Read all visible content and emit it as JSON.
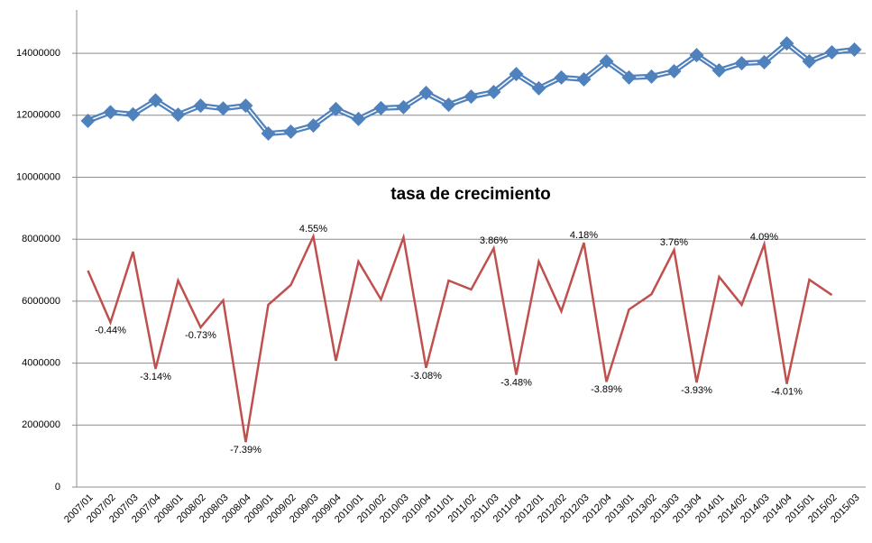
{
  "chart_data": {
    "type": "line",
    "title": "tasa de crecimiento",
    "categories": [
      "2007/01",
      "2007/02",
      "2007/03",
      "2007/04",
      "2008/01",
      "2008/02",
      "2008/03",
      "2008/04",
      "2009/01",
      "2009/02",
      "2009/03",
      "2009/04",
      "2010/01",
      "2010/02",
      "2010/03",
      "2010/04",
      "2011/01",
      "2011/02",
      "2011/03",
      "2011/04",
      "2012/01",
      "2012/02",
      "2012/03",
      "2012/04",
      "2013/01",
      "2013/02",
      "2013/03",
      "2013/04",
      "2014/01",
      "2014/02",
      "2014/03",
      "2014/04",
      "2015/01",
      "2015/02",
      "2015/03"
    ],
    "series": [
      {
        "color": "#4f81bd",
        "values": [
          11820000,
          12100000,
          12030000,
          12480000,
          12020000,
          12310000,
          12220000,
          12310000,
          11410000,
          11470000,
          11670000,
          12200000,
          11880000,
          12230000,
          12260000,
          12720000,
          12340000,
          12600000,
          12750000,
          13330000,
          12870000,
          13220000,
          13160000,
          13740000,
          13220000,
          13250000,
          13420000,
          13940000,
          13450000,
          13680000,
          13710000,
          14320000,
          13740000,
          14030000,
          14120000
        ]
      },
      {
        "color": "#c0504d",
        "axis": "y2",
        "values": [
          2.57,
          -0.44,
          3.66,
          -3.14,
          1.99,
          -0.73,
          0.84,
          -7.39,
          0.58,
          1.73,
          4.55,
          -2.67,
          3.09,
          0.89,
          4.5,
          -3.08,
          1.99,
          1.47,
          3.86,
          -3.48,
          3.09,
          0.21,
          4.18,
          -3.89,
          0.31,
          1.2,
          3.76,
          -3.93,
          2.2,
          0.58,
          4.09,
          -4.01,
          2.04,
          1.15,
          null
        ],
        "value_labels": [
          null,
          "-0.44%",
          null,
          "-3.14%",
          null,
          "-0.73%",
          null,
          "-7.39%",
          null,
          null,
          "4.55%",
          null,
          null,
          null,
          null,
          "-3.08%",
          null,
          null,
          "3.86%",
          "-3.48%",
          null,
          null,
          "4.18%",
          "-3.89%",
          null,
          null,
          "3.76%",
          "-3.93%",
          null,
          null,
          "4.09%",
          "-4.01%",
          null,
          null,
          null
        ]
      }
    ],
    "ylim": [
      0,
      15400000
    ],
    "yticks": [
      0,
      2000000,
      4000000,
      6000000,
      8000000,
      10000000,
      12000000,
      14000000
    ],
    "y2lim": [
      -10,
      17.7
    ],
    "grid": true
  }
}
